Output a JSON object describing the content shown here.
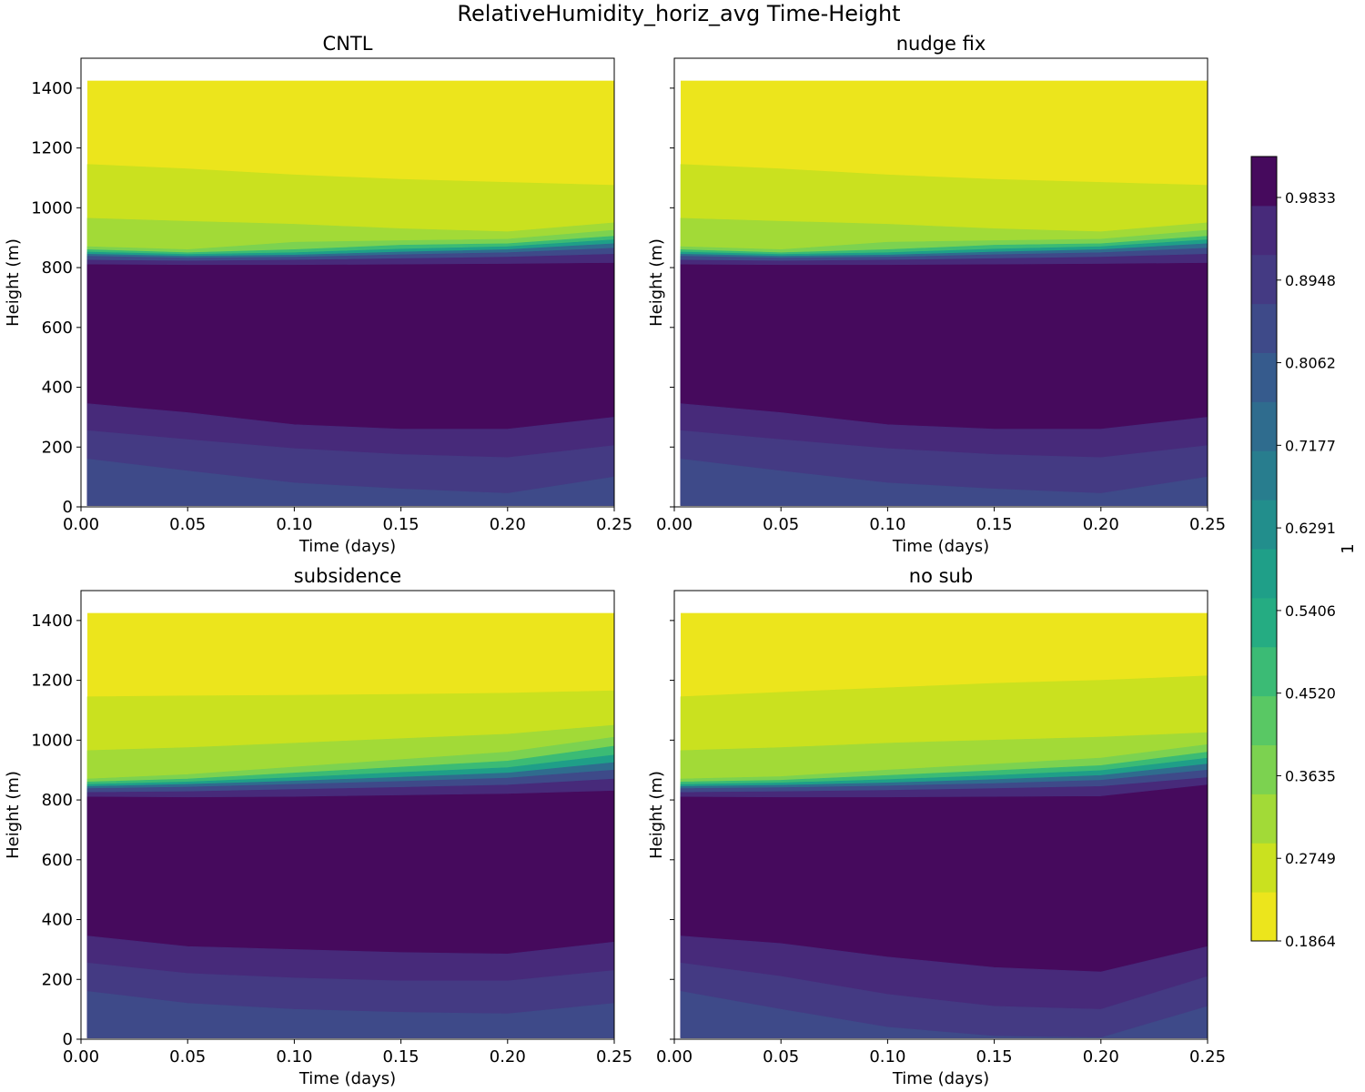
{
  "figure_title": "RelativeHumidity_horiz_avg Time-Height",
  "colorbar": {
    "label": "1",
    "tick_labels": [
      "0.1864",
      "0.2749",
      "0.3635",
      "0.4520",
      "0.5406",
      "0.6291",
      "0.7177",
      "0.8062",
      "0.8948",
      "0.9833"
    ],
    "level_colors": [
      "#ece51c",
      "#cae11f",
      "#a2da37",
      "#7cd250",
      "#59c864",
      "#3bbb75",
      "#25ac82",
      "#1f9f88",
      "#228e8c",
      "#287d8e",
      "#2f6c8e",
      "#365b8d",
      "#3e4a89",
      "#443a83",
      "#472a7a",
      "#460a5d"
    ]
  },
  "chart_data": [
    {
      "type": "contour",
      "title": "CNTL",
      "xlabel": "Time (days)",
      "ylabel": "Height (m)",
      "xlim": [
        0.0,
        0.25
      ],
      "ylim": [
        0,
        1500
      ],
      "data_extent": {
        "x": [
          0.003,
          0.25
        ],
        "y": [
          5,
          1425
        ]
      },
      "xticks": [
        "0.00",
        "0.05",
        "0.10",
        "0.15",
        "0.20",
        "0.25"
      ],
      "yticks": [
        "0",
        "200",
        "400",
        "600",
        "800",
        "1000",
        "1200",
        "1400"
      ],
      "x": [
        0.003,
        0.05,
        0.1,
        0.15,
        0.2,
        0.25
      ],
      "boundaries": [
        {
          "level": 0.2749,
          "heights": [
            1145,
            1130,
            1110,
            1095,
            1085,
            1075
          ]
        },
        {
          "level": 0.3635,
          "heights": [
            965,
            955,
            945,
            930,
            920,
            950
          ]
        },
        {
          "level": 0.452,
          "heights": [
            870,
            860,
            885,
            890,
            895,
            925
          ]
        },
        {
          "level": 0.5406,
          "heights": [
            860,
            850,
            860,
            875,
            880,
            905
          ]
        },
        {
          "level": 0.6291,
          "heights": [
            852,
            844,
            850,
            862,
            870,
            893
          ]
        },
        {
          "level": 0.7177,
          "heights": [
            845,
            838,
            842,
            852,
            860,
            880
          ]
        },
        {
          "level": 0.8062,
          "heights": [
            838,
            832,
            835,
            843,
            850,
            865
          ]
        },
        {
          "level": 0.8948,
          "heights": [
            825,
            822,
            825,
            830,
            835,
            845
          ]
        },
        {
          "level": 0.9833,
          "heights": [
            810,
            808,
            808,
            810,
            812,
            815
          ]
        },
        {
          "level": 0.9833,
          "heights": [
            345,
            315,
            275,
            260,
            260,
            300
          ]
        },
        {
          "level": 0.8948,
          "heights": [
            255,
            225,
            195,
            175,
            165,
            205
          ]
        },
        {
          "level": 0.8062,
          "heights": [
            160,
            120,
            80,
            60,
            45,
            100
          ]
        }
      ]
    },
    {
      "type": "contour",
      "title": "nudge fix",
      "xlabel": "Time (days)",
      "ylabel": "Height (m)",
      "xlim": [
        0.0,
        0.25
      ],
      "ylim": [
        0,
        1500
      ],
      "data_extent": {
        "x": [
          0.003,
          0.25
        ],
        "y": [
          5,
          1425
        ]
      },
      "xticks": [
        "0.00",
        "0.05",
        "0.10",
        "0.15",
        "0.20",
        "0.25"
      ],
      "yticks": [
        "0",
        "200",
        "400",
        "600",
        "800",
        "1000",
        "1200",
        "1400"
      ],
      "x": [
        0.003,
        0.05,
        0.1,
        0.15,
        0.2,
        0.25
      ],
      "boundaries": [
        {
          "level": 0.2749,
          "heights": [
            1145,
            1130,
            1110,
            1095,
            1085,
            1075
          ]
        },
        {
          "level": 0.3635,
          "heights": [
            965,
            955,
            945,
            930,
            920,
            950
          ]
        },
        {
          "level": 0.452,
          "heights": [
            870,
            860,
            885,
            890,
            895,
            925
          ]
        },
        {
          "level": 0.5406,
          "heights": [
            860,
            850,
            860,
            875,
            880,
            905
          ]
        },
        {
          "level": 0.6291,
          "heights": [
            852,
            844,
            850,
            862,
            870,
            893
          ]
        },
        {
          "level": 0.7177,
          "heights": [
            845,
            838,
            842,
            852,
            860,
            880
          ]
        },
        {
          "level": 0.8062,
          "heights": [
            838,
            832,
            835,
            843,
            850,
            865
          ]
        },
        {
          "level": 0.8948,
          "heights": [
            825,
            822,
            825,
            830,
            835,
            845
          ]
        },
        {
          "level": 0.9833,
          "heights": [
            810,
            808,
            808,
            810,
            812,
            815
          ]
        },
        {
          "level": 0.9833,
          "heights": [
            345,
            315,
            275,
            260,
            260,
            300
          ]
        },
        {
          "level": 0.8948,
          "heights": [
            255,
            225,
            195,
            175,
            165,
            205
          ]
        },
        {
          "level": 0.8062,
          "heights": [
            160,
            120,
            80,
            60,
            45,
            100
          ]
        }
      ]
    },
    {
      "type": "contour",
      "title": "subsidence",
      "xlabel": "Time (days)",
      "ylabel": "Height (m)",
      "xlim": [
        0.0,
        0.25
      ],
      "ylim": [
        0,
        1500
      ],
      "data_extent": {
        "x": [
          0.003,
          0.25
        ],
        "y": [
          5,
          1425
        ]
      },
      "xticks": [
        "0.00",
        "0.05",
        "0.10",
        "0.15",
        "0.20",
        "0.25"
      ],
      "yticks": [
        "0",
        "200",
        "400",
        "600",
        "800",
        "1000",
        "1200",
        "1400"
      ],
      "x": [
        0.003,
        0.05,
        0.1,
        0.15,
        0.2,
        0.25
      ],
      "boundaries": [
        {
          "level": 0.2749,
          "heights": [
            1145,
            1148,
            1150,
            1153,
            1157,
            1165
          ]
        },
        {
          "level": 0.3635,
          "heights": [
            965,
            975,
            990,
            1005,
            1020,
            1050
          ]
        },
        {
          "level": 0.452,
          "heights": [
            870,
            885,
            910,
            935,
            960,
            1010
          ]
        },
        {
          "level": 0.5406,
          "heights": [
            860,
            870,
            890,
            910,
            930,
            980
          ]
        },
        {
          "level": 0.6291,
          "heights": [
            852,
            860,
            875,
            892,
            908,
            950
          ]
        },
        {
          "level": 0.7177,
          "heights": [
            845,
            852,
            863,
            876,
            890,
            925
          ]
        },
        {
          "level": 0.8062,
          "heights": [
            838,
            843,
            852,
            862,
            873,
            900
          ]
        },
        {
          "level": 0.8948,
          "heights": [
            825,
            828,
            835,
            842,
            850,
            870
          ]
        },
        {
          "level": 0.9833,
          "heights": [
            810,
            808,
            810,
            815,
            820,
            830
          ]
        },
        {
          "level": 0.9833,
          "heights": [
            345,
            310,
            300,
            290,
            285,
            325
          ]
        },
        {
          "level": 0.8948,
          "heights": [
            255,
            220,
            205,
            195,
            195,
            230
          ]
        },
        {
          "level": 0.8062,
          "heights": [
            160,
            120,
            100,
            90,
            85,
            120
          ]
        }
      ]
    },
    {
      "type": "contour",
      "title": "no sub",
      "xlabel": "Time (days)",
      "ylabel": "Height (m)",
      "xlim": [
        0.0,
        0.25
      ],
      "ylim": [
        0,
        1500
      ],
      "data_extent": {
        "x": [
          0.003,
          0.25
        ],
        "y": [
          5,
          1425
        ]
      },
      "xticks": [
        "0.00",
        "0.05",
        "0.10",
        "0.15",
        "0.20",
        "0.25"
      ],
      "yticks": [
        "0",
        "200",
        "400",
        "600",
        "800",
        "1000",
        "1200",
        "1400"
      ],
      "x": [
        0.003,
        0.05,
        0.1,
        0.15,
        0.2,
        0.25
      ],
      "boundaries": [
        {
          "level": 0.2749,
          "heights": [
            1145,
            1160,
            1175,
            1190,
            1200,
            1215
          ]
        },
        {
          "level": 0.3635,
          "heights": [
            965,
            975,
            990,
            1000,
            1010,
            1025
          ]
        },
        {
          "level": 0.452,
          "heights": [
            870,
            878,
            900,
            920,
            940,
            985
          ]
        },
        {
          "level": 0.5406,
          "heights": [
            860,
            866,
            882,
            898,
            915,
            960
          ]
        },
        {
          "level": 0.6291,
          "heights": [
            852,
            857,
            868,
            882,
            898,
            940
          ]
        },
        {
          "level": 0.7177,
          "heights": [
            845,
            849,
            857,
            868,
            882,
            920
          ]
        },
        {
          "level": 0.8062,
          "heights": [
            838,
            841,
            847,
            855,
            866,
            900
          ]
        },
        {
          "level": 0.8948,
          "heights": [
            825,
            828,
            832,
            838,
            845,
            875
          ]
        },
        {
          "level": 0.9833,
          "heights": [
            810,
            808,
            808,
            810,
            812,
            850
          ]
        },
        {
          "level": 0.9833,
          "heights": [
            345,
            320,
            275,
            240,
            225,
            310
          ]
        },
        {
          "level": 0.8948,
          "heights": [
            255,
            210,
            150,
            110,
            100,
            210
          ]
        },
        {
          "level": 0.8062,
          "heights": [
            160,
            100,
            40,
            10,
            5,
            110
          ]
        }
      ]
    }
  ]
}
